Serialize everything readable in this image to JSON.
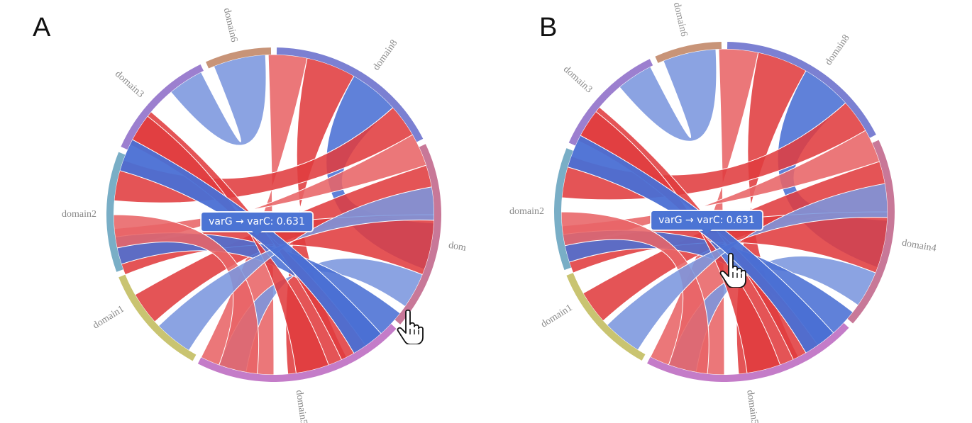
{
  "panels": [
    {
      "letter": "A",
      "tooltip": "varG → varC: 0.631",
      "domains": [
        {
          "label": "domain6",
          "color": "#c89478"
        },
        {
          "label": "domain8",
          "color": "#7b80d2"
        },
        {
          "label": "dom",
          "color": "#c87898"
        },
        {
          "label": "domain5",
          "color": "#c47cc8"
        },
        {
          "label": "domain1",
          "color": "#c9c471"
        },
        {
          "label": "domain2",
          "color": "#79aec6"
        },
        {
          "label": "domain3",
          "color": "#9c7fcf"
        }
      ]
    },
    {
      "letter": "B",
      "tooltip": "varG → varC: 0.631",
      "domains": [
        {
          "label": "domain6",
          "color": "#c89478"
        },
        {
          "label": "domain8",
          "color": "#7b80d2"
        },
        {
          "label": "domain4",
          "color": "#c87898"
        },
        {
          "label": "domain5",
          "color": "#c47cc8"
        },
        {
          "label": "domain1",
          "color": "#c9c471"
        },
        {
          "label": "domain2",
          "color": "#79aec6"
        },
        {
          "label": "domain3",
          "color": "#9c7fcf"
        }
      ]
    }
  ],
  "chord_colors": {
    "positive": "#e03c3f",
    "positive_light": "#e86467",
    "negative": "#4a6fd4",
    "negative_light": "#7b96de"
  },
  "cursor_icon": "hand-pointer-icon"
}
